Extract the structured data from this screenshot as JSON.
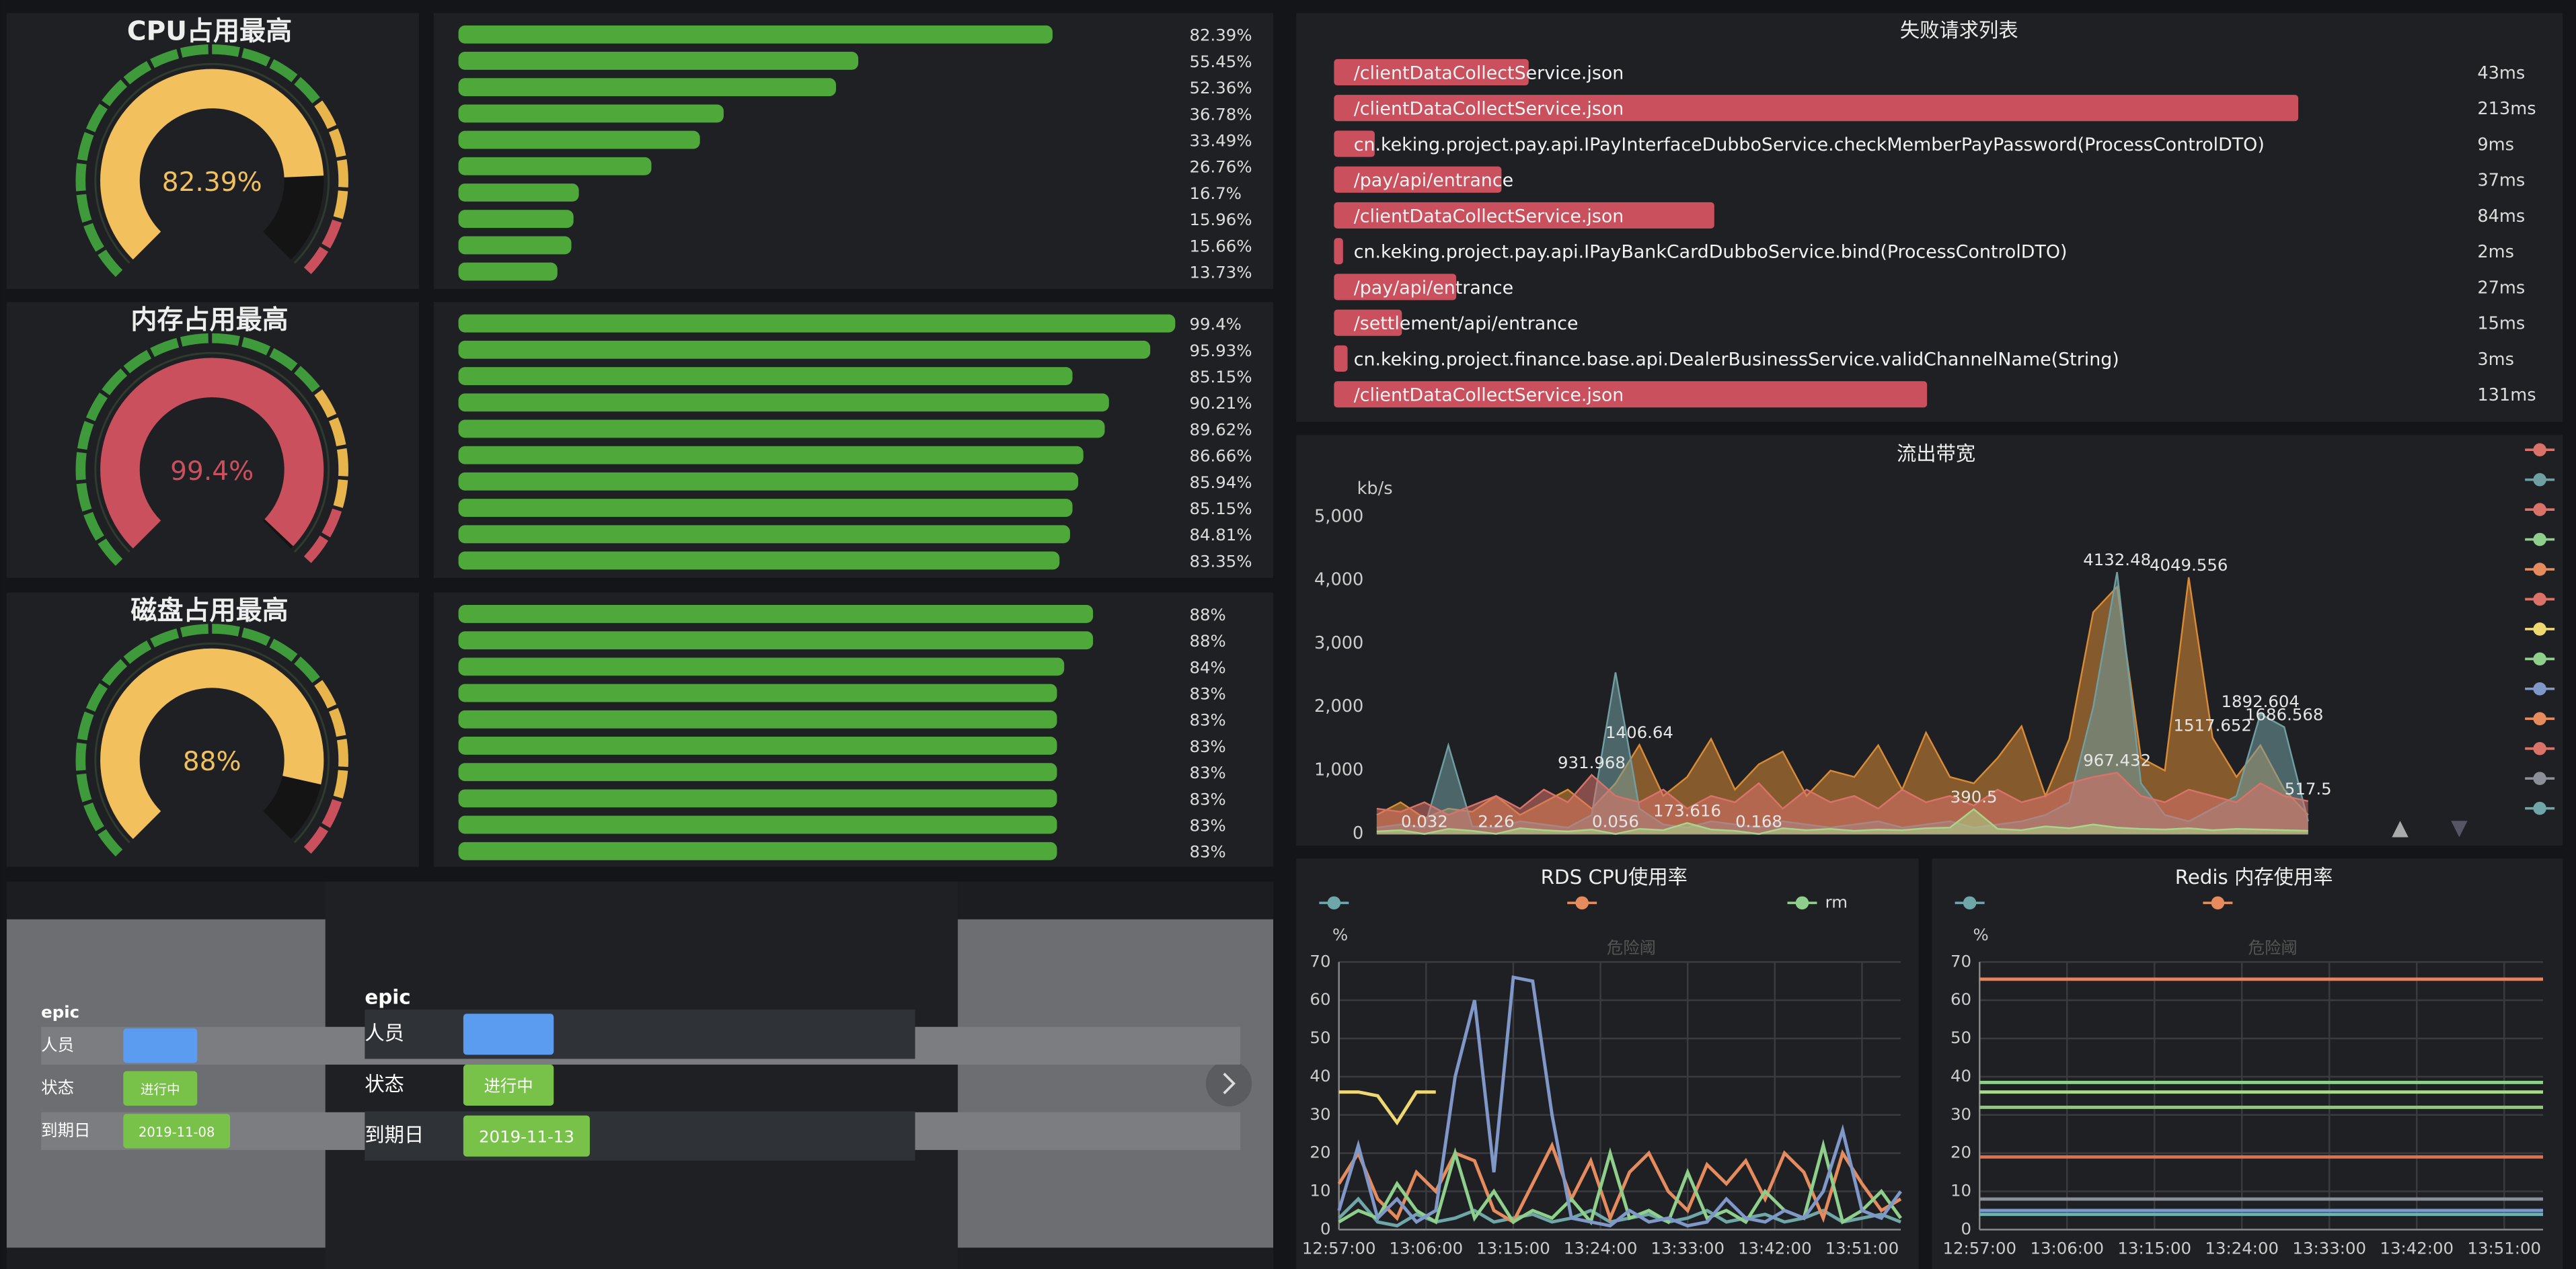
{
  "chart_data": [
    {
      "type": "gauge",
      "title": "CPU占用最高",
      "values": [
        82.39
      ],
      "value_labels": [
        "82.39%"
      ],
      "range": [
        0,
        100
      ],
      "color": "#f2c05c"
    },
    {
      "type": "hbar",
      "values": [
        82.39,
        55.45,
        52.36,
        36.78,
        33.49,
        26.76,
        16.7,
        15.96,
        15.66,
        13.73
      ],
      "value_labels": [
        "82.39%",
        "55.45%",
        "52.36%",
        "36.78%",
        "33.49%",
        "26.76%",
        "16.7%",
        "15.96%",
        "15.66%",
        "13.73%"
      ],
      "xlim": [
        0,
        100
      ],
      "color": "#4ea83a"
    },
    {
      "type": "gauge",
      "title": "内存占用最高",
      "values": [
        99.4
      ],
      "value_labels": [
        "99.4%"
      ],
      "range": [
        0,
        100
      ],
      "color": "#c9505c"
    },
    {
      "type": "hbar",
      "values": [
        99.4,
        95.93,
        85.15,
        90.21,
        89.62,
        86.66,
        85.94,
        85.15,
        84.81,
        83.35
      ],
      "value_labels": [
        "99.4%",
        "95.93%",
        "85.15%",
        "90.21%",
        "89.62%",
        "86.66%",
        "85.94%",
        "85.15%",
        "84.81%",
        "83.35%"
      ],
      "xlim": [
        0,
        100
      ],
      "color": "#4ea83a"
    },
    {
      "type": "gauge",
      "title": "磁盘占用最高",
      "values": [
        88
      ],
      "value_labels": [
        "88%"
      ],
      "range": [
        0,
        100
      ],
      "color": "#f2c05c"
    },
    {
      "type": "hbar",
      "values": [
        88,
        88,
        84,
        83,
        83,
        83,
        83,
        83,
        83,
        83
      ],
      "value_labels": [
        "88%",
        "88%",
        "84%",
        "83%",
        "83%",
        "83%",
        "83%",
        "83%",
        "83%",
        "83%"
      ],
      "xlim": [
        0,
        100
      ],
      "color": "#4ea83a"
    },
    {
      "type": "hbar",
      "title": "失败请求列表",
      "categories": [
        "/clientDataCollectService.json",
        "/clientDataCollectService.json",
        "cn.keking.project.pay.api.IPayInterfaceDubboService.checkMemberPayPassword(ProcessControlDTO)",
        "/pay/api/entrance",
        "/clientDataCollectService.json",
        "cn.keking.project.pay.api.IPayBankCardDubboService.bind(ProcessControlDTO)",
        "/pay/api/entrance",
        "/settlement/api/entrance",
        "cn.keking.project.finance.base.api.DealerBusinessService.validChannelName(String)",
        "/clientDataCollectService.json"
      ],
      "values": [
        43,
        213,
        9,
        37,
        84,
        2,
        27,
        15,
        3,
        131
      ],
      "value_labels": [
        "43ms",
        "213ms",
        "9ms",
        "37ms",
        "84ms",
        "2ms",
        "27ms",
        "15ms",
        "3ms",
        "131ms"
      ],
      "color": "#c9505c"
    },
    {
      "type": "area",
      "title": "流出带宽",
      "y_label": "kb/s",
      "categories": [
        null,
        null,
        null,
        null,
        null,
        null,
        null,
        null,
        null,
        null,
        null,
        null,
        null,
        null,
        null,
        null,
        null,
        null,
        null,
        null,
        null,
        null,
        null,
        null,
        null,
        null,
        null,
        null,
        null,
        null,
        null,
        null,
        null,
        null,
        null,
        null,
        null,
        null,
        null,
        null
      ],
      "ylim": [
        0,
        5000
      ],
      "yticks": [
        0,
        {
          "value": 1000,
          "label": "1,000"
        },
        {
          "value": 2000,
          "label": "2,000"
        },
        {
          "value": 3000,
          "label": "3,000"
        },
        {
          "value": 4000,
          "label": "4,000"
        },
        {
          "value": 5000,
          "label": "5,000"
        }
      ],
      "series": [
        {
          "color": "#d98b36",
          "values": [
            300,
            500,
            250,
            400,
            350,
            600,
            300,
            500,
            700,
            400,
            800,
            1406.64,
            600,
            900,
            1500,
            700,
            1100,
            1300,
            600,
            1000,
            900,
            1400,
            700,
            1600,
            900,
            800,
            1200,
            1700,
            600,
            1500,
            3500,
            3900,
            1200,
            1000,
            4049.556,
            1517.652,
            900,
            1400,
            700,
            300
          ],
          "value_labels": [
            null,
            null,
            null,
            null,
            null,
            null,
            null,
            null,
            null,
            null,
            null,
            "1406.64",
            null,
            null,
            null,
            null,
            null,
            null,
            null,
            null,
            null,
            null,
            null,
            null,
            null,
            null,
            null,
            null,
            null,
            null,
            null,
            null,
            null,
            null,
            "4049.556",
            "1517.652",
            null,
            null,
            null,
            null
          ]
        },
        {
          "color": "#6f9ea3",
          "values": [
            100,
            150,
            100,
            1400,
            120,
            100,
            200,
            150,
            100,
            300,
            2550,
            400,
            150,
            100,
            200,
            150,
            100,
            200,
            150,
            100,
            150,
            200,
            100,
            150,
            200,
            100,
            150,
            200,
            300,
            500,
            2000,
            4132.48,
            800,
            300,
            200,
            400,
            600,
            1892.604,
            1686.568,
            200
          ],
          "value_labels": [
            null,
            null,
            null,
            null,
            null,
            null,
            null,
            null,
            null,
            null,
            null,
            null,
            null,
            null,
            null,
            null,
            null,
            null,
            null,
            null,
            null,
            null,
            null,
            null,
            null,
            null,
            null,
            null,
            null,
            null,
            null,
            "4132.48",
            null,
            null,
            null,
            null,
            null,
            "1892.604",
            "1686.568",
            null
          ]
        },
        {
          "color": "#d9736a",
          "values": [
            400,
            350,
            500,
            300,
            450,
            600,
            400,
            700,
            500,
            931.968,
            600,
            500,
            700,
            400,
            600,
            500,
            800,
            400,
            700,
            500,
            600,
            400,
            700,
            500,
            600,
            450,
            700,
            500,
            600,
            800,
            900,
            967.432,
            600,
            500,
            700,
            600,
            500,
            800,
            600,
            517.5
          ],
          "value_labels": [
            null,
            null,
            null,
            null,
            null,
            null,
            null,
            null,
            null,
            "931.968",
            null,
            null,
            null,
            null,
            null,
            null,
            null,
            null,
            null,
            null,
            null,
            null,
            null,
            null,
            null,
            null,
            null,
            null,
            null,
            null,
            null,
            "967.432",
            null,
            null,
            null,
            null,
            null,
            null,
            null,
            "517.5"
          ]
        },
        {
          "color": "#a9d58a",
          "values": [
            40,
            60,
            0.032,
            80,
            50,
            2.26,
            90,
            60,
            40,
            70,
            0.056,
            80,
            60,
            173.616,
            70,
            50,
            0.168,
            90,
            60,
            80,
            50,
            70,
            60,
            90,
            100,
            390.5,
            80,
            60,
            120,
            90,
            150,
            100,
            80,
            70,
            90,
            60,
            80,
            70,
            60,
            50
          ],
          "value_labels": [
            null,
            null,
            "0.032",
            null,
            null,
            "2.26",
            null,
            null,
            null,
            null,
            "0.056",
            null,
            null,
            "173.616",
            null,
            null,
            "0.168",
            null,
            null,
            null,
            null,
            null,
            null,
            null,
            null,
            "390.5",
            null,
            null,
            null,
            null,
            null,
            null,
            null,
            null,
            null,
            null,
            null,
            null,
            null,
            null
          ]
        }
      ]
    },
    {
      "type": "line",
      "title": "RDS CPU使用率",
      "y_label": "%",
      "annotation": "危险阈",
      "x": [
        "12:57:00",
        "12:59:00",
        "13:01:00",
        "13:03:00",
        "13:05:00",
        "13:07:00",
        "13:09:00",
        "13:11:00",
        "13:13:00",
        "13:15:00",
        "13:17:00",
        "13:19:00",
        "13:21:00",
        "13:23:00",
        "13:25:00",
        "13:27:00",
        "13:29:00",
        "13:31:00",
        "13:33:00",
        "13:35:00",
        "13:37:00",
        "13:39:00",
        "13:41:00",
        "13:43:00",
        "13:45:00",
        "13:47:00",
        "13:49:00",
        "13:51:00",
        "13:53:00",
        "13:55:00"
      ],
      "xlim": [
        "12:57:00",
        "13:55:00"
      ],
      "xticks": [
        "12:57:00",
        "13:06:00",
        "13:15:00",
        "13:24:00",
        "13:33:00",
        "13:42:00",
        "13:51:00"
      ],
      "ylim": [
        0,
        70
      ],
      "yticks": [
        0,
        10,
        20,
        30,
        40,
        50,
        60,
        70
      ],
      "grid": true,
      "series": [
        {
          "color": "#6fa6a8",
          "values": [
            3,
            8,
            2,
            1,
            4,
            2,
            3,
            5,
            2,
            3,
            4,
            2,
            3,
            5,
            2,
            3,
            4,
            2,
            3,
            5,
            2,
            3,
            4,
            2,
            3,
            5,
            2,
            3,
            4,
            2
          ]
        },
        {
          "color": "#e58b5d",
          "values": [
            12,
            20,
            8,
            3,
            15,
            10,
            20,
            18,
            5,
            2,
            12,
            22,
            8,
            18,
            3,
            15,
            20,
            10,
            5,
            17,
            12,
            18,
            8,
            20,
            15,
            3,
            20,
            12,
            5,
            8
          ]
        },
        {
          "name": "rm",
          "color": "#8fcf8c",
          "values": [
            2,
            5,
            3,
            12,
            5,
            2,
            20,
            3,
            10,
            2,
            5,
            3,
            8,
            2,
            20,
            3,
            5,
            2,
            15,
            3,
            5,
            2,
            10,
            5,
            3,
            22,
            2,
            5,
            10,
            3
          ]
        },
        {
          "color": "#7f97c9",
          "values": [
            5,
            22,
            3,
            8,
            2,
            5,
            40,
            60,
            15,
            66,
            65,
            30,
            3,
            2,
            1,
            5,
            2,
            3,
            1,
            2,
            8,
            3,
            2,
            5,
            3,
            10,
            26,
            5,
            3,
            10
          ]
        },
        {
          "color": "#efd872",
          "values": [
            36,
            36,
            35,
            28,
            36,
            36,
            null,
            null,
            null,
            null,
            null,
            null,
            null,
            null,
            null,
            null,
            null,
            null,
            null,
            null,
            null,
            null,
            null,
            null,
            null,
            null,
            null,
            null,
            null,
            null
          ]
        }
      ]
    },
    {
      "type": "line",
      "title": "Redis 内存使用率",
      "y_label": "%",
      "annotation": "危险阈",
      "x": [
        "12:57:00",
        "13:55:00"
      ],
      "xlim": [
        "12:57:00",
        "13:55:00"
      ],
      "xticks": [
        "12:57:00",
        "13:06:00",
        "13:15:00",
        "13:24:00",
        "13:33:00",
        "13:42:00",
        "13:51:00"
      ],
      "ylim": [
        0,
        70
      ],
      "yticks": [
        0,
        10,
        20,
        30,
        40,
        50,
        60,
        70
      ],
      "grid": true,
      "series": [
        {
          "color": "#e3855e",
          "values": [
            65.5,
            65.5
          ]
        },
        {
          "color": "#8fcf8c",
          "values": [
            38.5,
            38.5
          ]
        },
        {
          "color": "#a6d98d",
          "values": [
            36,
            36
          ]
        },
        {
          "color": "#90c87a",
          "values": [
            32,
            32
          ]
        },
        {
          "color": "#e0704f",
          "values": [
            19,
            19
          ]
        },
        {
          "color": "#8a8f99",
          "values": [
            8,
            8
          ]
        },
        {
          "color": "#7a9ad0",
          "values": [
            5,
            5
          ]
        },
        {
          "color": "#6fb0b0",
          "values": [
            4,
            4
          ]
        }
      ]
    }
  ],
  "cards": [
    {
      "heading": "epic",
      "fields": [
        {
          "label": "人员"
        },
        {
          "label": "状态",
          "value": "进行中"
        },
        {
          "label": "到期日",
          "value": "2019-11-08"
        }
      ]
    },
    {
      "heading": "epic",
      "fields": [
        {
          "label": "人员"
        },
        {
          "label": "状态",
          "value": "进行中"
        },
        {
          "label": "到期日",
          "value": "2019-11-13"
        }
      ]
    }
  ]
}
